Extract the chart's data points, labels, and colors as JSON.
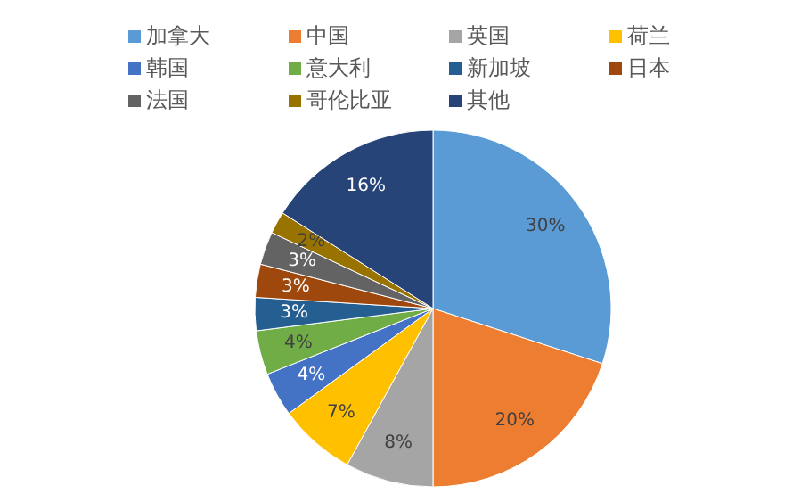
{
  "chart_data": {
    "type": "pie",
    "categories": [
      "加拿大",
      "中国",
      "英国",
      "荷兰",
      "韩国",
      "意大利",
      "新加坡",
      "日本",
      "法国",
      "哥伦比亚",
      "其他"
    ],
    "values": [
      30,
      20,
      8,
      7,
      4,
      4,
      3,
      3,
      3,
      2,
      16
    ],
    "colors": [
      "#5b9bd5",
      "#ed7d31",
      "#a5a5a5",
      "#ffc000",
      "#4472c4",
      "#70ad47",
      "#255e91",
      "#9e480e",
      "#636363",
      "#997300",
      "#264478"
    ],
    "value_labels": [
      "30%",
      "20%",
      "8%",
      "7%",
      "4%",
      "4%",
      "3%",
      "3%",
      "3%",
      "2%",
      "16%"
    ],
    "legend": "top"
  }
}
